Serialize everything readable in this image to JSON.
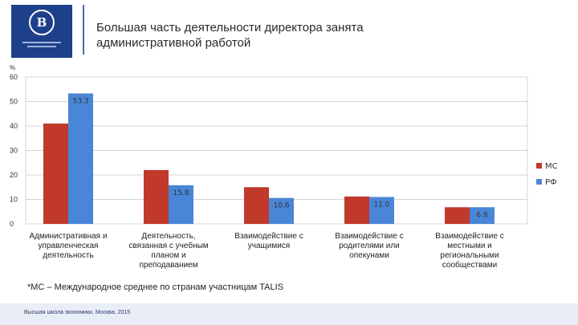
{
  "header": {
    "title_line1": "Большая часть деятельности директора занята",
    "title_line2": "административной работой",
    "logo_icon": "hse-logo-icon",
    "logo_text": "В"
  },
  "footnote": "*МС – Международное среднее по странам участницам TALIS",
  "footer": "Высшая школа экономики, Москва, 2015",
  "colors": {
    "ms": "#c0392b",
    "rf": "#4a86d8",
    "logo_bg": "#1e3f8a"
  },
  "chart_data": {
    "type": "bar",
    "ylabel_unit": "%",
    "ylim": [
      0,
      60
    ],
    "yticks": [
      0,
      10,
      20,
      30,
      40,
      50,
      60
    ],
    "grid": true,
    "legend_position": "right",
    "categories": [
      [
        "Административная и",
        "управленческая",
        "деятельность"
      ],
      [
        "Деятельность,",
        "связанная с учебным",
        "планом и",
        "преподаванием"
      ],
      [
        "Взаимодействие с",
        "учащимися"
      ],
      [
        "Взаимодействие с",
        "родителями или",
        "опекунами"
      ],
      [
        "Взаимодействие с",
        "местными и",
        "региональными",
        "сообществами"
      ]
    ],
    "series": [
      {
        "name": "МС",
        "color": "#c0392b",
        "values": [
          41,
          22,
          15,
          11.2,
          6.8
        ],
        "labels": [
          "",
          "",
          "",
          "",
          ""
        ]
      },
      {
        "name": "РФ",
        "color": "#4a86d8",
        "values": [
          53.3,
          15.8,
          10.6,
          11.0,
          6.8
        ],
        "labels": [
          "53.3",
          "15.8",
          "10.6",
          "11.0",
          "6.8"
        ]
      }
    ]
  }
}
